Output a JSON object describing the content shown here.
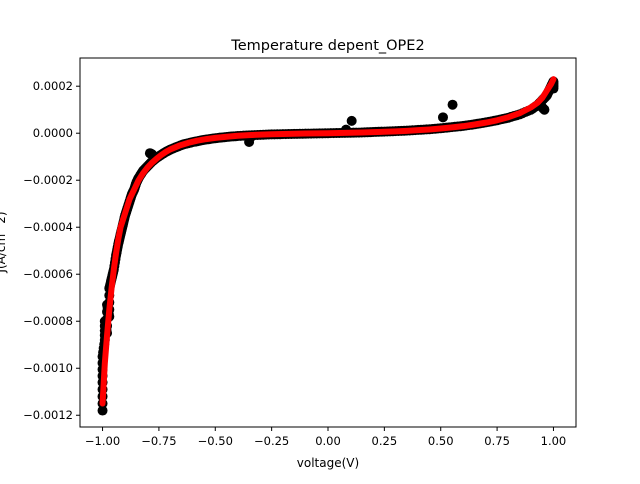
{
  "chart_data": {
    "type": "scatter",
    "title": "Temperature depent_OPE2",
    "xlabel": "voltage(V)",
    "ylabel": "J(A/cm^2)",
    "xlim": [
      -1.1,
      1.1
    ],
    "ylim": [
      -0.00125,
      0.00032
    ],
    "grid": false,
    "x_ticks": [
      -1.0,
      -0.75,
      -0.5,
      -0.25,
      0.0,
      0.25,
      0.5,
      0.75,
      1.0
    ],
    "x_tick_labels": [
      "−1.00",
      "−0.75",
      "−0.50",
      "−0.25",
      "0.00",
      "0.25",
      "0.50",
      "0.75",
      "1.00"
    ],
    "y_ticks": [
      0.0002,
      0.0,
      -0.0002,
      -0.0004,
      -0.0006,
      -0.0008,
      -0.001,
      -0.0012
    ],
    "y_tick_labels": [
      "0.0002",
      "0.0000",
      "−0.0002",
      "−0.0004",
      "−0.0006",
      "−0.0008",
      "−0.0010",
      "−0.0012"
    ],
    "series": [
      {
        "kind": "scatter",
        "color": "#000000",
        "x": [
          -1.0,
          -1.0,
          -1.0,
          -0.99,
          -0.99,
          -0.98,
          -0.98,
          -0.97,
          -0.97,
          -0.96,
          -0.95,
          -0.94,
          -0.93,
          -0.92,
          -0.91,
          -0.9,
          -0.89,
          -0.88,
          -0.87,
          -0.86,
          -0.85,
          -0.84,
          -0.82,
          -0.8,
          -0.78,
          -0.76,
          -0.74,
          -0.72,
          -0.7,
          -0.67,
          -0.64,
          -0.6,
          -0.56,
          -0.52,
          -0.48,
          -0.44,
          -0.4,
          -0.35,
          -0.3,
          -0.25,
          -0.2,
          -0.15,
          -0.1,
          -0.05,
          0.0,
          0.05,
          0.1,
          0.15,
          0.2,
          0.25,
          0.3,
          0.35,
          0.4,
          0.45,
          0.5,
          0.55,
          0.6,
          0.65,
          0.7,
          0.75,
          0.8,
          0.85,
          0.9,
          0.93,
          0.95,
          0.97,
          0.98,
          0.99,
          1.0,
          1.0,
          -0.79,
          -0.78,
          0.94,
          0.96
        ],
        "y": [
          -0.00118,
          -0.00106,
          -0.00095,
          -0.00088,
          -0.0008,
          -0.00085,
          -0.00073,
          -0.00078,
          -0.00066,
          -0.00062,
          -0.00058,
          -0.00052,
          -0.00047,
          -0.00043,
          -0.00039,
          -0.00035,
          -0.00032,
          -0.00029,
          -0.00026,
          -0.00024,
          -0.00021,
          -0.00019,
          -0.00016,
          -0.00014,
          -0.00012,
          -0.000105,
          -9.2e-05,
          -8e-05,
          -7e-05,
          -5.8e-05,
          -4.7e-05,
          -3.8e-05,
          -3e-05,
          -2.4e-05,
          -1.9e-05,
          -1.5e-05,
          -1.2e-05,
          -9e-06,
          -7e-06,
          -5e-06,
          -4e-06,
          -3e-06,
          -2e-06,
          -1e-06,
          0.0,
          1e-06,
          2e-06,
          3e-06,
          5e-06,
          7e-06,
          9e-06,
          1.1e-05,
          1.4e-05,
          1.7e-05,
          2.1e-05,
          2.6e-05,
          3.1e-05,
          3.8e-05,
          4.6e-05,
          5.5e-05,
          6.6e-05,
          8e-05,
          0.0001,
          0.00012,
          0.00014,
          0.00016,
          0.00018,
          0.0002,
          0.00022,
          0.00019,
          -8.5e-05,
          -9e-05,
          0.00012,
          0.0001
        ]
      },
      {
        "kind": "line",
        "color": "#ff0000",
        "x": [
          -1.0,
          -0.99,
          -0.98,
          -0.97,
          -0.96,
          -0.95,
          -0.94,
          -0.93,
          -0.92,
          -0.9,
          -0.88,
          -0.86,
          -0.84,
          -0.82,
          -0.8,
          -0.78,
          -0.76,
          -0.74,
          -0.72,
          -0.7,
          -0.66,
          -0.62,
          -0.58,
          -0.54,
          -0.5,
          -0.45,
          -0.4,
          -0.35,
          -0.3,
          -0.25,
          -0.2,
          -0.15,
          -0.1,
          -0.05,
          0.0,
          0.05,
          0.1,
          0.15,
          0.2,
          0.25,
          0.3,
          0.35,
          0.4,
          0.45,
          0.5,
          0.55,
          0.6,
          0.65,
          0.7,
          0.75,
          0.8,
          0.85,
          0.9,
          0.93,
          0.95,
          0.97,
          0.99,
          1.0
        ],
        "y": [
          -0.00115,
          -0.00098,
          -0.00086,
          -0.00075,
          -0.00066,
          -0.00058,
          -0.00051,
          -0.00045,
          -0.0004,
          -0.00034,
          -0.00028,
          -0.00024,
          -0.0002,
          -0.00017,
          -0.000145,
          -0.000125,
          -0.000108,
          -9.3e-05,
          -8e-05,
          -6.9e-05,
          -5.3e-05,
          -4.1e-05,
          -3.2e-05,
          -2.5e-05,
          -2e-05,
          -1.5e-05,
          -1.1e-05,
          -8e-06,
          -6e-06,
          -4.5e-06,
          -3.5e-06,
          -2.5e-06,
          -1.5e-06,
          -7e-07,
          0.0,
          1e-06,
          2e-06,
          3e-06,
          4.5e-06,
          6e-06,
          8e-06,
          1e-05,
          1.3e-05,
          1.6e-05,
          2e-05,
          2.5e-05,
          3e-05,
          3.7e-05,
          4.5e-05,
          5.5e-05,
          6.8e-05,
          8.5e-05,
          0.00011,
          0.00013,
          0.00015,
          0.00018,
          0.00021,
          0.00023
        ]
      }
    ]
  }
}
